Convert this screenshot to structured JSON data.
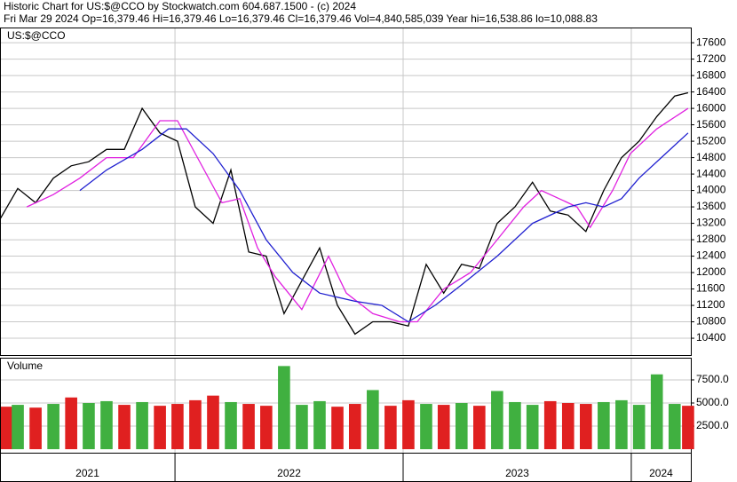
{
  "chart_data": {
    "type": "line",
    "title": "Historic Chart for US:$@CCO by Stockwatch.com 604.687.1500 - (c) 2024",
    "subtitle": "Fri Mar 29 2024   Op=16,379.46   Hi=16,379.46   Lo=16,379.46   Cl=16,379.46   Vol=4,840,585,039   Year hi=16,538.86   lo=10,088.83",
    "symbol_label": "US:$@CCO",
    "xlim": [
      2021.233,
      2024.261
    ],
    "xticks": [
      2022,
      2023,
      2024
    ],
    "year_labels": [
      "2021",
      "2022",
      "2023",
      "2024"
    ],
    "ylim": [
      9990,
      17970
    ],
    "yticks": [
      10400,
      10800,
      11200,
      11600,
      12000,
      12400,
      12800,
      13200,
      13600,
      14000,
      14400,
      14800,
      15200,
      15600,
      16000,
      16400,
      16800,
      17200,
      17600
    ],
    "grid": true,
    "series": [
      {
        "color": "#000000",
        "x": [
          2021.233,
          2021.311,
          2021.389,
          2021.467,
          2021.545,
          2021.622,
          2021.7,
          2021.778,
          2021.856,
          2021.934,
          2022.011,
          2022.089,
          2022.167,
          2022.245,
          2022.323,
          2022.4,
          2022.478,
          2022.556,
          2022.634,
          2022.712,
          2022.789,
          2022.867,
          2022.945,
          2023.023,
          2023.101,
          2023.178,
          2023.256,
          2023.334,
          2023.412,
          2023.49,
          2023.567,
          2023.645,
          2023.723,
          2023.801,
          2023.879,
          2023.957,
          2024.034,
          2024.112,
          2024.19,
          2024.249
        ],
        "values": [
          13300,
          14050,
          13700,
          14300,
          14600,
          14700,
          15000,
          15000,
          16000,
          15400,
          15200,
          13600,
          13200,
          14500,
          12500,
          12400,
          11000,
          11800,
          12600,
          11200,
          10500,
          10800,
          10800,
          10700,
          12200,
          11500,
          12200,
          12100,
          13200,
          13600,
          14200,
          13500,
          13400,
          13000,
          14000,
          14800,
          15200,
          15800,
          16300,
          16379.46
        ]
      },
      {
        "color": "#e020e0",
        "x": [
          2021.35,
          2021.467,
          2021.583,
          2021.7,
          2021.817,
          2021.934,
          2022.011,
          2022.089,
          2022.206,
          2022.284,
          2022.362,
          2022.439,
          2022.556,
          2022.673,
          2022.751,
          2022.867,
          2022.984,
          2023.062,
          2023.178,
          2023.295,
          2023.412,
          2023.528,
          2023.606,
          2023.684,
          2023.762,
          2023.82,
          2023.918,
          2023.996,
          2024.112,
          2024.249
        ],
        "values": [
          13600,
          13900,
          14300,
          14800,
          14800,
          15700,
          15700,
          14900,
          13700,
          13800,
          12600,
          11900,
          11100,
          12400,
          11500,
          11000,
          10800,
          10800,
          11600,
          12000,
          12800,
          13600,
          14000,
          13800,
          13600,
          13100,
          14000,
          14900,
          15500,
          16000
        ]
      },
      {
        "color": "#2020d0",
        "x": [
          2021.583,
          2021.7,
          2021.856,
          2021.972,
          2022.05,
          2022.167,
          2022.284,
          2022.4,
          2022.517,
          2022.634,
          2022.789,
          2022.906,
          2023.023,
          2023.14,
          2023.256,
          2023.412,
          2023.567,
          2023.723,
          2023.801,
          2023.879,
          2023.957,
          2024.034,
          2024.151,
          2024.249
        ],
        "values": [
          14000,
          14500,
          15000,
          15500,
          15500,
          14900,
          14000,
          12800,
          12000,
          11500,
          11300,
          11200,
          10800,
          11200,
          11700,
          12400,
          13200,
          13600,
          13700,
          13600,
          13800,
          14300,
          14900,
          15400
        ]
      }
    ],
    "volume": {
      "type": "bar",
      "label": "Volume",
      "ylim": [
        -380,
        9900
      ],
      "yticks": [
        {
          "value": 2500,
          "label": "2500.0"
        },
        {
          "value": 5000,
          "label": "5000.0"
        },
        {
          "value": 7500,
          "label": "7500.0"
        }
      ],
      "values": [
        4600,
        4800,
        4500,
        4900,
        5600,
        5000,
        5200,
        4800,
        5100,
        4700,
        4900,
        5300,
        5800,
        5100,
        4900,
        4700,
        9000,
        4800,
        5200,
        4600,
        4900,
        6400,
        4700,
        5300,
        4900,
        4800,
        5000,
        4700,
        6300,
        5100,
        4800,
        5200,
        5000,
        4900,
        5100,
        5300,
        4800,
        8100,
        4900,
        4700
      ],
      "colors": [
        "#e02020",
        "#40b040",
        "#e02020",
        "#40b040",
        "#e02020",
        "#40b040",
        "#40b040",
        "#e02020",
        "#40b040",
        "#e02020",
        "#e02020",
        "#e02020",
        "#e02020",
        "#40b040",
        "#e02020",
        "#e02020",
        "#40b040",
        "#40b040",
        "#40b040",
        "#e02020",
        "#e02020",
        "#40b040",
        "#e02020",
        "#e02020",
        "#40b040",
        "#e02020",
        "#40b040",
        "#e02020",
        "#40b040",
        "#40b040",
        "#40b040",
        "#e02020",
        "#e02020",
        "#e02020",
        "#40b040",
        "#40b040",
        "#40b040",
        "#40b040",
        "#40b040",
        "#e02020"
      ]
    }
  }
}
